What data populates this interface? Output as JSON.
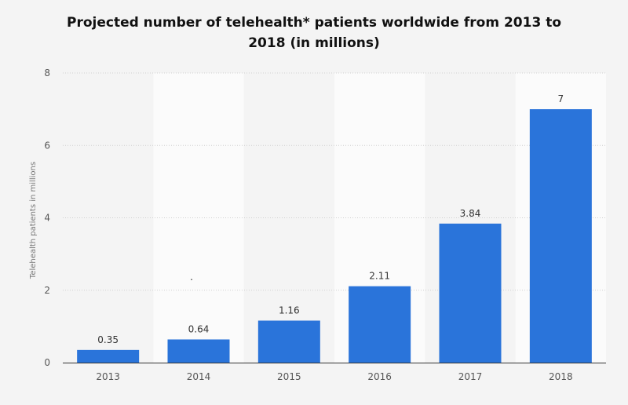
{
  "chart_data": {
    "type": "bar",
    "title_line1": "Projected number of telehealth* patients worldwide from 2013 to",
    "title_line2": "2018 (in millions)",
    "xlabel": "",
    "ylabel": "Telehealth patients in millions",
    "categories": [
      "2013",
      "2014",
      "2015",
      "2016",
      "2017",
      "2018"
    ],
    "values": [
      0.35,
      0.64,
      1.16,
      2.11,
      3.84,
      7
    ],
    "data_labels": [
      "0.35",
      "0.64",
      "1.16",
      "2.11",
      "3.84",
      "7"
    ],
    "ylim": [
      0,
      8
    ],
    "yticks": [
      "0",
      "2",
      "4",
      "6",
      "8"
    ],
    "grid": true,
    "bar_color": "#2a74da",
    "stray_mark": "."
  }
}
